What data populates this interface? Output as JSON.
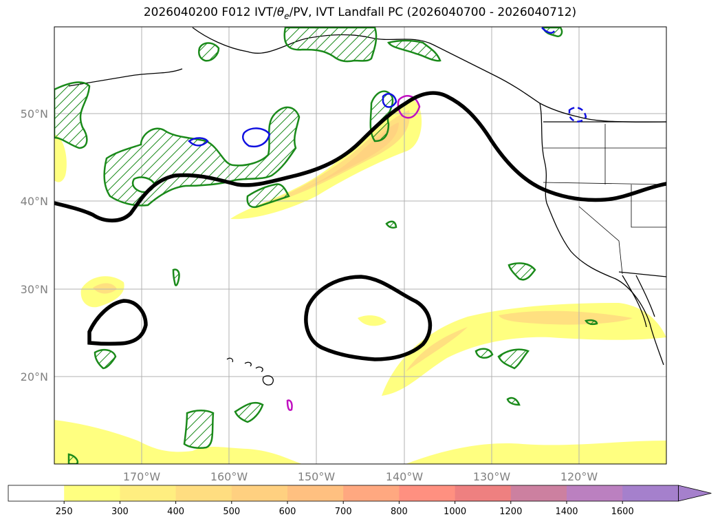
{
  "title": {
    "prefix": "2026040200 F012 IVT/",
    "theta": "θ",
    "theta_sub": "e",
    "suffix": "/PV, IVT Landfall PC (2026040700 - 2026040712)"
  },
  "map": {
    "lat_labels": [
      "50°N",
      "40°N",
      "30°N",
      "20°N"
    ],
    "lon_labels": [
      "170°W",
      "160°W",
      "150°W",
      "140°W",
      "130°W",
      "120°W"
    ]
  },
  "colorbar": {
    "ticks": [
      "250",
      "300",
      "400",
      "500",
      "600",
      "700",
      "800",
      "1000",
      "1200",
      "1400",
      "1600"
    ],
    "colors": [
      "#ffffff",
      "#ffff80",
      "#ffee80",
      "#ffdd80",
      "#ffd080",
      "#ffc080",
      "#ffa880",
      "#ff9080",
      "#ee8080",
      "#cc80a0",
      "#bb80c0",
      "#a580cc"
    ],
    "extend": "max"
  }
}
